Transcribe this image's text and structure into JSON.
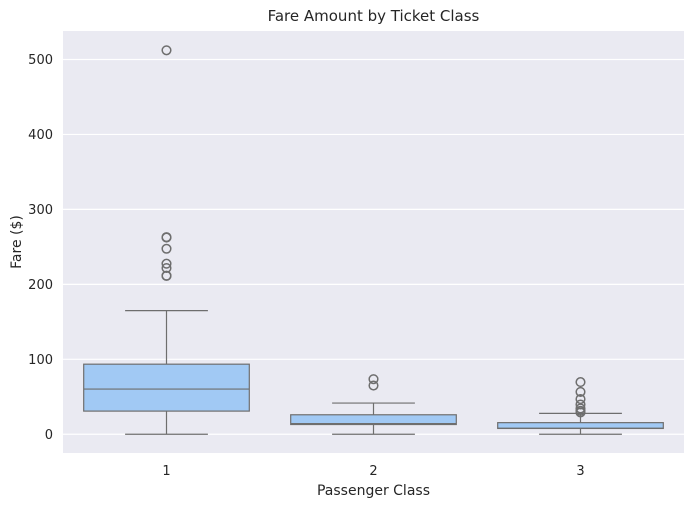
{
  "chart_data": {
    "type": "box",
    "title": "Fare Amount by Ticket Class",
    "xlabel": "Passenger Class",
    "ylabel": "Fare ($)",
    "categories": [
      "1",
      "2",
      "3"
    ],
    "ylim": [
      -25,
      538
    ],
    "yticks": [
      0,
      100,
      200,
      300,
      400,
      500
    ],
    "grid": true,
    "boxes": [
      {
        "category": "1",
        "whisker_low": 0,
        "q1": 30.9,
        "median": 60.3,
        "q3": 93.5,
        "whisker_high": 164.9,
        "outliers": [
          211.3,
          211.5,
          221.8,
          227.5,
          247.5,
          262.4,
          263,
          512.3
        ]
      },
      {
        "category": "2",
        "whisker_low": 0,
        "q1": 13,
        "median": 14.25,
        "q3": 26,
        "whisker_high": 41.6,
        "outliers": [
          65,
          73.5
        ]
      },
      {
        "category": "3",
        "whisker_low": 0,
        "q1": 7.75,
        "median": 8.05,
        "q3": 15.5,
        "whisker_high": 27.9,
        "outliers": [
          29.1,
          31.3,
          34.4,
          39.7,
          46.9,
          56.5,
          69.6
        ]
      }
    ],
    "colors": {
      "box_fill": "#a1c9f4",
      "box_edge": "#6e6e6e",
      "background": "#eaeaf2",
      "grid": "#ffffff"
    }
  }
}
